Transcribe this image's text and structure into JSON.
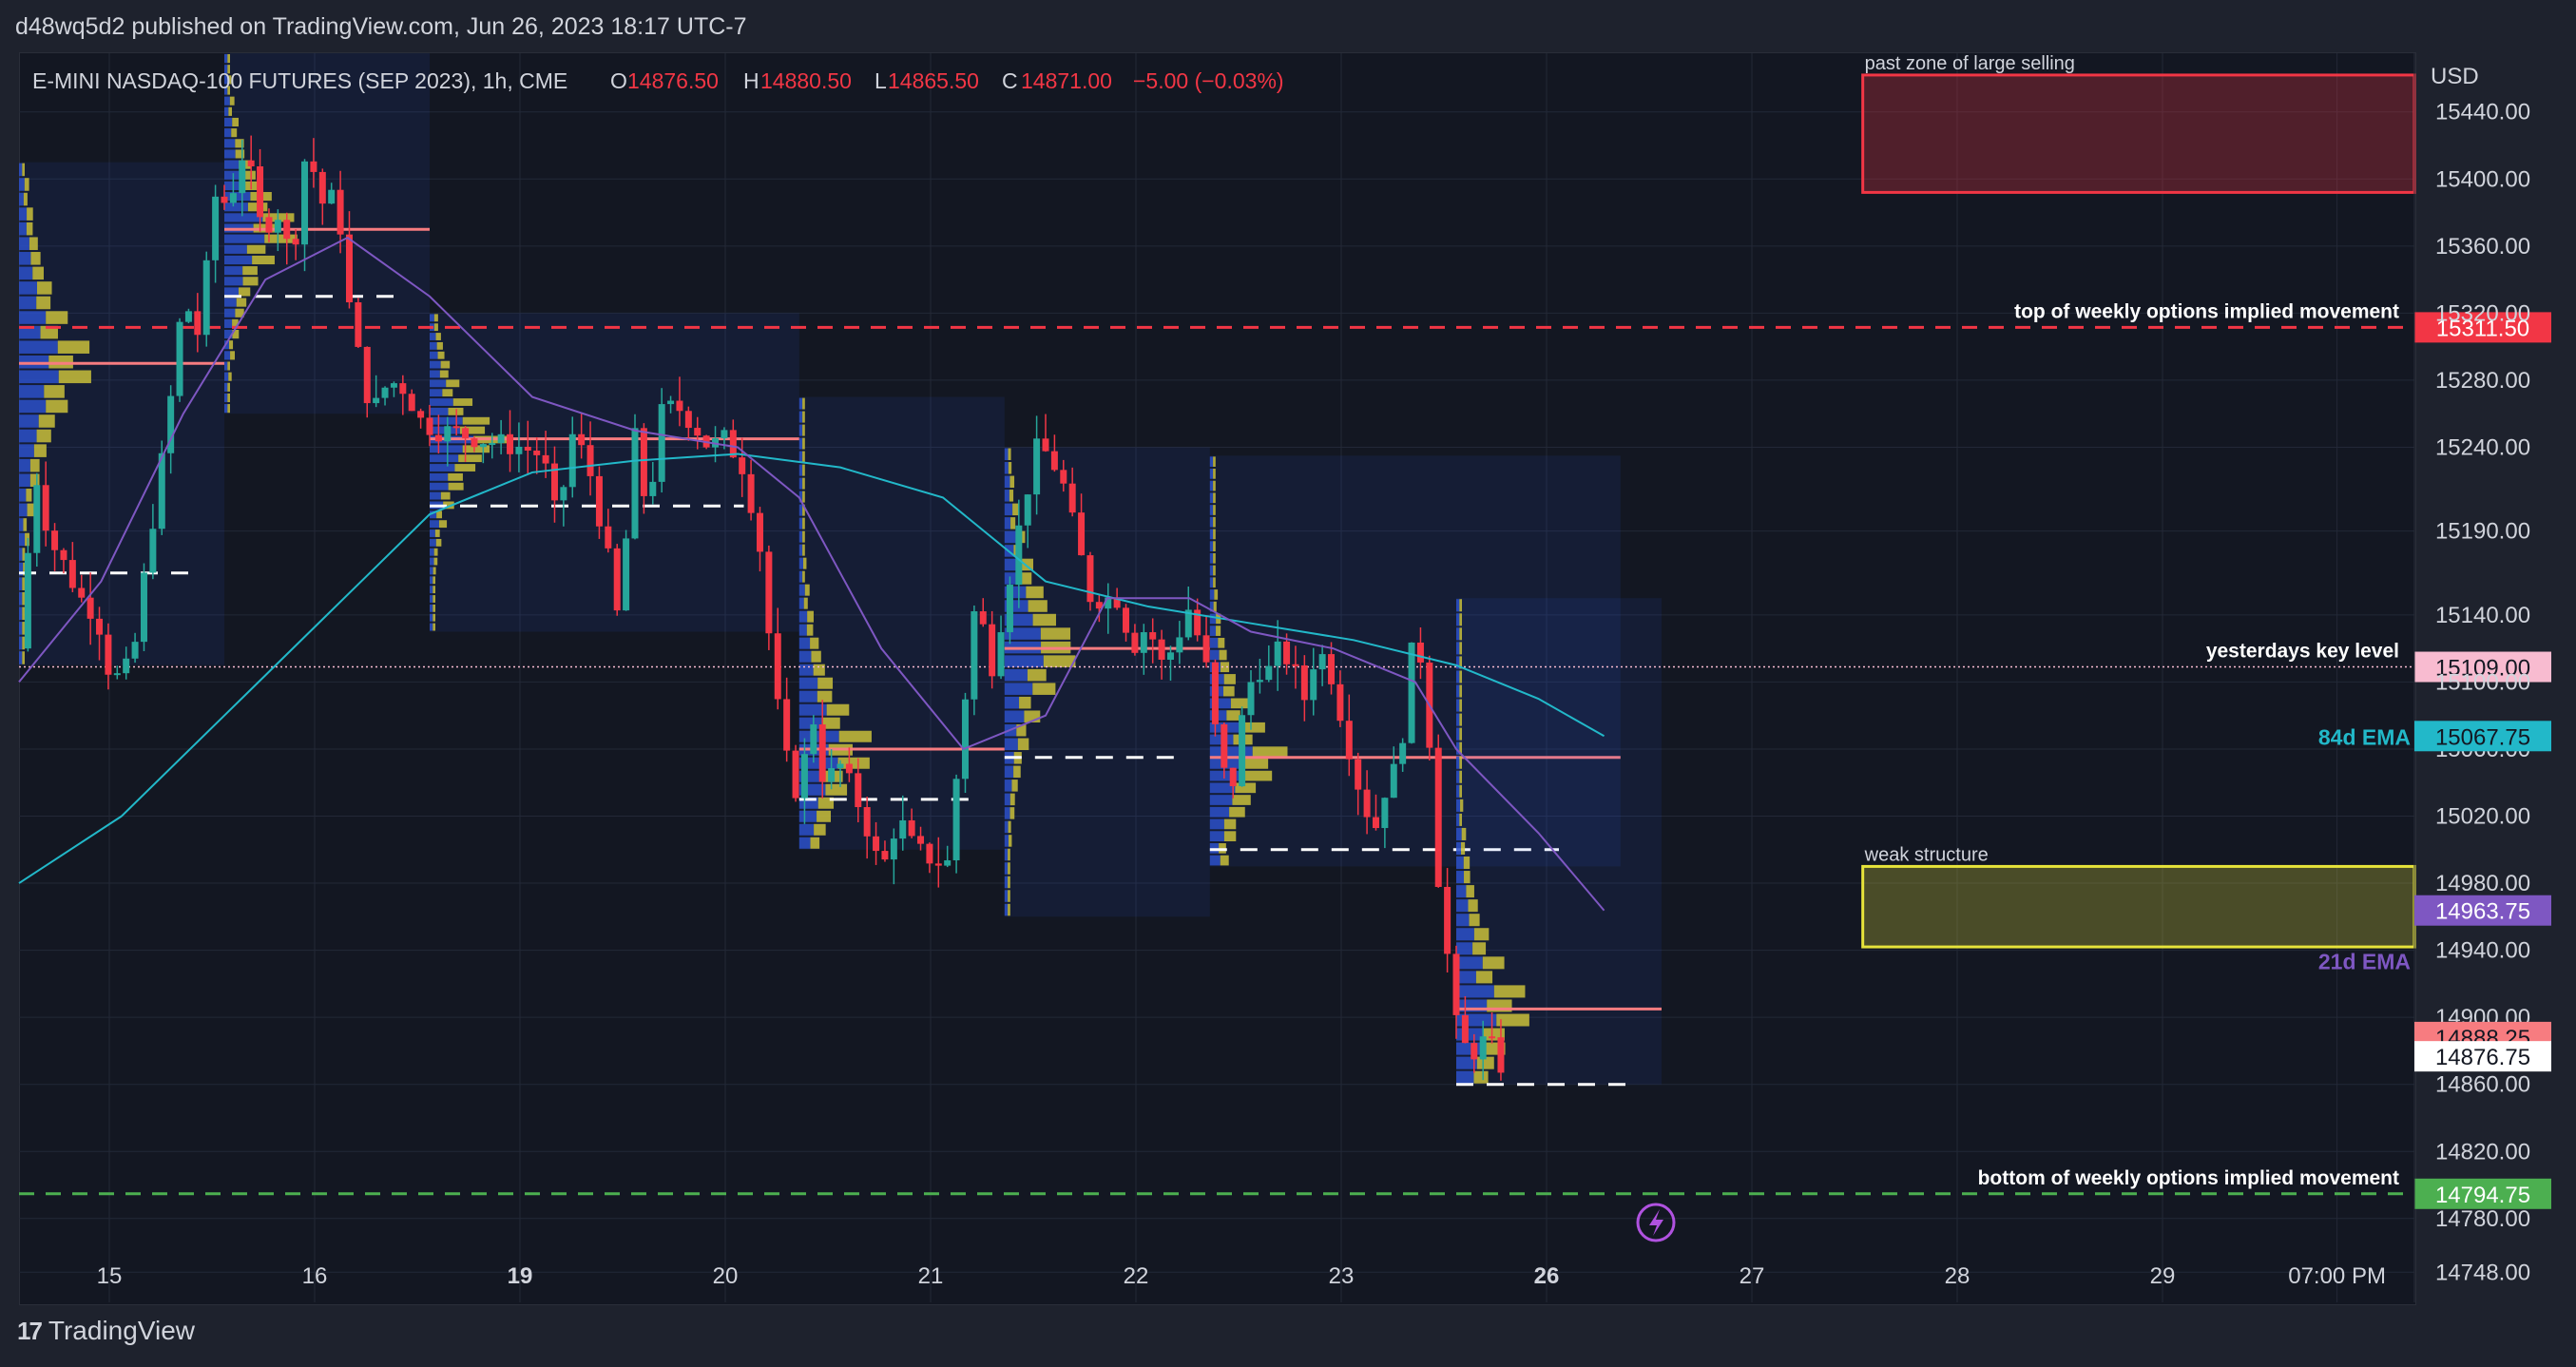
{
  "header": {
    "published_by": "d48wq5d2 published on TradingView.com, Jun 26, 2023 18:17 UTC-7"
  },
  "legend": {
    "symbol": "E-MINI NASDAQ-100 FUTURES (SEP 2023), 1h, CME",
    "o_label": "O",
    "o_value": "14876.50",
    "h_label": "H",
    "h_value": "14880.50",
    "l_label": "L",
    "l_value": "14865.50",
    "c_label": "C",
    "c_value": "14871.00",
    "change": "−5.00 (−0.03%)"
  },
  "footer": {
    "brand": "TradingView",
    "brand_mark": "17"
  },
  "colors": {
    "background": "#131722",
    "up": "#26a69a",
    "down": "#f23645",
    "grid": "#232837",
    "ema84": "#22b8c9",
    "ema21": "#7e57c2",
    "resistance": "#f23645",
    "support": "#4caf50",
    "structure": "#e6e33a",
    "text": "#d1d4dc"
  },
  "chart_data": {
    "type": "candlestick",
    "title": "E-MINI NASDAQ-100 FUTURES (SEP 2023), 1h, CME",
    "currency": "USD",
    "ylim": [
      14730,
      15475
    ],
    "y_ticks": [
      "15440.00",
      "15400.00",
      "15360.00",
      "15320.00",
      "15280.00",
      "15240.00",
      "15190.00",
      "15140.00",
      "15100.00",
      "15060.00",
      "15020.00",
      "14980.00",
      "14940.00",
      "14900.00",
      "14860.00",
      "14820.00",
      "14780.00",
      "14748.00"
    ],
    "x_ticks": [
      {
        "label": "15",
        "day": 0
      },
      {
        "label": "16",
        "day": 1
      },
      {
        "label": "19",
        "day": 2,
        "bold": true
      },
      {
        "label": "20",
        "day": 3
      },
      {
        "label": "21",
        "day": 4
      },
      {
        "label": "22",
        "day": 5
      },
      {
        "label": "23",
        "day": 6
      },
      {
        "label": "26",
        "day": 7,
        "bold": true
      },
      {
        "label": "27",
        "day": 8
      },
      {
        "label": "28",
        "day": 9
      },
      {
        "label": "29",
        "day": 10
      },
      {
        "label": "07:00 PM",
        "day": 10.85
      }
    ],
    "candle_path": [
      [
        0,
        15120
      ],
      [
        0.08,
        15225
      ],
      [
        0.15,
        15185
      ],
      [
        0.22,
        15170
      ],
      [
        0.3,
        15150
      ],
      [
        0.38,
        15140
      ],
      [
        0.45,
        15100
      ],
      [
        0.55,
        15110
      ],
      [
        0.63,
        15180
      ],
      [
        0.72,
        15250
      ],
      [
        0.8,
        15330
      ],
      [
        0.88,
        15305
      ],
      [
        0.95,
        15390
      ],
      [
        1.02,
        15385
      ],
      [
        1.1,
        15420
      ],
      [
        1.18,
        15370
      ],
      [
        1.26,
        15380
      ],
      [
        1.33,
        15350
      ],
      [
        1.4,
        15420
      ],
      [
        1.48,
        15385
      ],
      [
        1.55,
        15390
      ],
      [
        1.6,
        15330
      ],
      [
        1.66,
        15290
      ],
      [
        1.72,
        15260
      ],
      [
        1.8,
        15280
      ],
      [
        1.88,
        15275
      ],
      [
        1.96,
        15255
      ],
      [
        2.05,
        15250
      ],
      [
        2.15,
        15248
      ],
      [
        2.25,
        15245
      ],
      [
        2.35,
        15242
      ],
      [
        2.45,
        15240
      ],
      [
        2.55,
        15235
      ],
      [
        2.62,
        15195
      ],
      [
        2.7,
        15250
      ],
      [
        2.78,
        15225
      ],
      [
        2.86,
        15180
      ],
      [
        2.92,
        15135
      ],
      [
        3.0,
        15245
      ],
      [
        3.06,
        15200
      ],
      [
        3.13,
        15260
      ],
      [
        3.2,
        15265
      ],
      [
        3.28,
        15255
      ],
      [
        3.36,
        15240
      ],
      [
        3.44,
        15245
      ],
      [
        3.52,
        15230
      ],
      [
        3.6,
        15190
      ],
      [
        3.66,
        15120
      ],
      [
        3.72,
        15060
      ],
      [
        3.8,
        15030
      ],
      [
        3.86,
        15085
      ],
      [
        3.92,
        15040
      ],
      [
        4.0,
        15050
      ],
      [
        4.08,
        15030
      ],
      [
        4.14,
        15010
      ],
      [
        4.2,
        14985
      ],
      [
        4.28,
        15020
      ],
      [
        4.36,
        15000
      ],
      [
        4.44,
        14995
      ],
      [
        4.52,
        14990
      ],
      [
        4.58,
        15060
      ],
      [
        4.66,
        15150
      ],
      [
        4.74,
        15110
      ],
      [
        4.82,
        15160
      ],
      [
        4.9,
        15210
      ],
      [
        4.96,
        15240
      ],
      [
        5.02,
        15235
      ],
      [
        5.08,
        15220
      ],
      [
        5.16,
        15180
      ],
      [
        5.22,
        15150
      ],
      [
        5.3,
        15150
      ],
      [
        5.36,
        15150
      ],
      [
        5.42,
        15120
      ],
      [
        5.5,
        15135
      ],
      [
        5.56,
        15110
      ],
      [
        5.62,
        15120
      ],
      [
        5.7,
        15145
      ],
      [
        5.78,
        15110
      ],
      [
        5.84,
        15060
      ],
      [
        5.9,
        15030
      ],
      [
        5.96,
        15080
      ],
      [
        6.02,
        15110
      ],
      [
        6.08,
        15105
      ],
      [
        6.14,
        15120
      ],
      [
        6.2,
        15110
      ],
      [
        6.26,
        15090
      ],
      [
        6.32,
        15120
      ],
      [
        6.38,
        15110
      ],
      [
        6.46,
        15070
      ],
      [
        6.52,
        15040
      ],
      [
        6.6,
        15010
      ],
      [
        6.66,
        15040
      ],
      [
        6.72,
        15050
      ],
      [
        6.8,
        15135
      ],
      [
        6.86,
        15090
      ],
      [
        6.9,
        14990
      ],
      [
        6.94,
        14970
      ],
      [
        6.98,
        14890
      ],
      [
        7.02,
        14900
      ],
      [
        7.06,
        14870
      ],
      [
        7.1,
        14885
      ],
      [
        7.16,
        14885
      ],
      [
        7.2,
        14875
      ],
      [
        7.22,
        14871
      ]
    ],
    "series": [
      {
        "name": "84d EMA",
        "points": [
          [
            0,
            14980
          ],
          [
            0.5,
            15020
          ],
          [
            1.0,
            15080
          ],
          [
            1.5,
            15140
          ],
          [
            2.0,
            15200
          ],
          [
            2.5,
            15225
          ],
          [
            3.0,
            15232
          ],
          [
            3.5,
            15236
          ],
          [
            4.0,
            15228
          ],
          [
            4.5,
            15210
          ],
          [
            5.0,
            15160
          ],
          [
            5.5,
            15145
          ],
          [
            6.0,
            15135
          ],
          [
            6.5,
            15125
          ],
          [
            7.0,
            15110
          ],
          [
            7.4,
            15090
          ],
          [
            7.72,
            15067.75
          ]
        ]
      },
      {
        "name": "21d EMA",
        "points": [
          [
            0,
            15100
          ],
          [
            0.4,
            15160
          ],
          [
            0.8,
            15260
          ],
          [
            1.2,
            15340
          ],
          [
            1.6,
            15365
          ],
          [
            2.0,
            15330
          ],
          [
            2.5,
            15270
          ],
          [
            3.0,
            15250
          ],
          [
            3.5,
            15240
          ],
          [
            3.8,
            15210
          ],
          [
            4.2,
            15120
          ],
          [
            4.6,
            15060
          ],
          [
            5.0,
            15080
          ],
          [
            5.3,
            15150
          ],
          [
            5.7,
            15150
          ],
          [
            6.0,
            15130
          ],
          [
            6.4,
            15120
          ],
          [
            6.8,
            15100
          ],
          [
            7.0,
            15060
          ],
          [
            7.4,
            15010
          ],
          [
            7.72,
            14963.75
          ]
        ]
      }
    ],
    "levels": [
      {
        "name": "top of weekly options implied movement",
        "value": 15311.5,
        "label": "15311.50",
        "color": "#f23645",
        "style": "dashed"
      },
      {
        "name": "yesterdays key level",
        "value": 15109.0,
        "label": "15109.00",
        "color": "#f8bbd0",
        "style": "dotted"
      },
      {
        "name": "bottom of weekly options implied movement",
        "value": 14794.75,
        "label": "14794.75",
        "color": "#4caf50",
        "style": "dashed"
      }
    ],
    "price_tags": [
      {
        "label": "15067.75",
        "value": 15067.75,
        "bg": "#22b8c9",
        "fg": "#131722",
        "caption": "84d EMA",
        "caption_color": "#22b8c9"
      },
      {
        "label": "14963.75",
        "value": 14963.75,
        "bg": "#7e57c2",
        "fg": "#ffffff",
        "caption": "21d EMA",
        "caption_color": "#7e57c2"
      },
      {
        "label": "14888.25",
        "value": 14888.25,
        "bg": "#f77c80",
        "fg": "#131722"
      },
      {
        "label": "14876.75",
        "value": 14876.75,
        "bg": "#ffffff",
        "fg": "#131722"
      }
    ],
    "zones": [
      {
        "label": "past zone of large selling",
        "top": 15462,
        "bottom": 15392,
        "from_day": 8.98,
        "to_day": 11.5,
        "stroke": "#f23645",
        "fill": "rgba(242,54,69,0.28)"
      },
      {
        "label": "weak structure",
        "top": 14990,
        "bottom": 14942,
        "from_day": 8.98,
        "to_day": 11.5,
        "stroke": "#e6e33a",
        "fill": "rgba(230,227,58,0.26)"
      }
    ],
    "sessions": [
      {
        "from": 0,
        "to": 1.0,
        "top": 15410,
        "bottom": 15110,
        "poc": 15290,
        "val": 15165
      },
      {
        "from": 1.0,
        "to": 2.0,
        "top": 15475,
        "bottom": 15260,
        "poc": 15370,
        "val": 15330
      },
      {
        "from": 2.0,
        "to": 3.8,
        "top": 15320,
        "bottom": 15130,
        "poc": 15245,
        "val": 15205
      },
      {
        "from": 3.8,
        "to": 4.8,
        "top": 15270,
        "bottom": 15000,
        "poc": 15060,
        "val": 15030
      },
      {
        "from": 4.8,
        "to": 5.8,
        "top": 15240,
        "bottom": 14960,
        "poc": 15120,
        "val": 15055
      },
      {
        "from": 5.8,
        "to": 7.8,
        "top": 15235,
        "bottom": 14990,
        "poc": 15055,
        "val": 15000
      },
      {
        "from": 7.0,
        "to": 8.0,
        "top": 15150,
        "bottom": 14860,
        "poc": 14905,
        "val": 14860
      }
    ]
  }
}
